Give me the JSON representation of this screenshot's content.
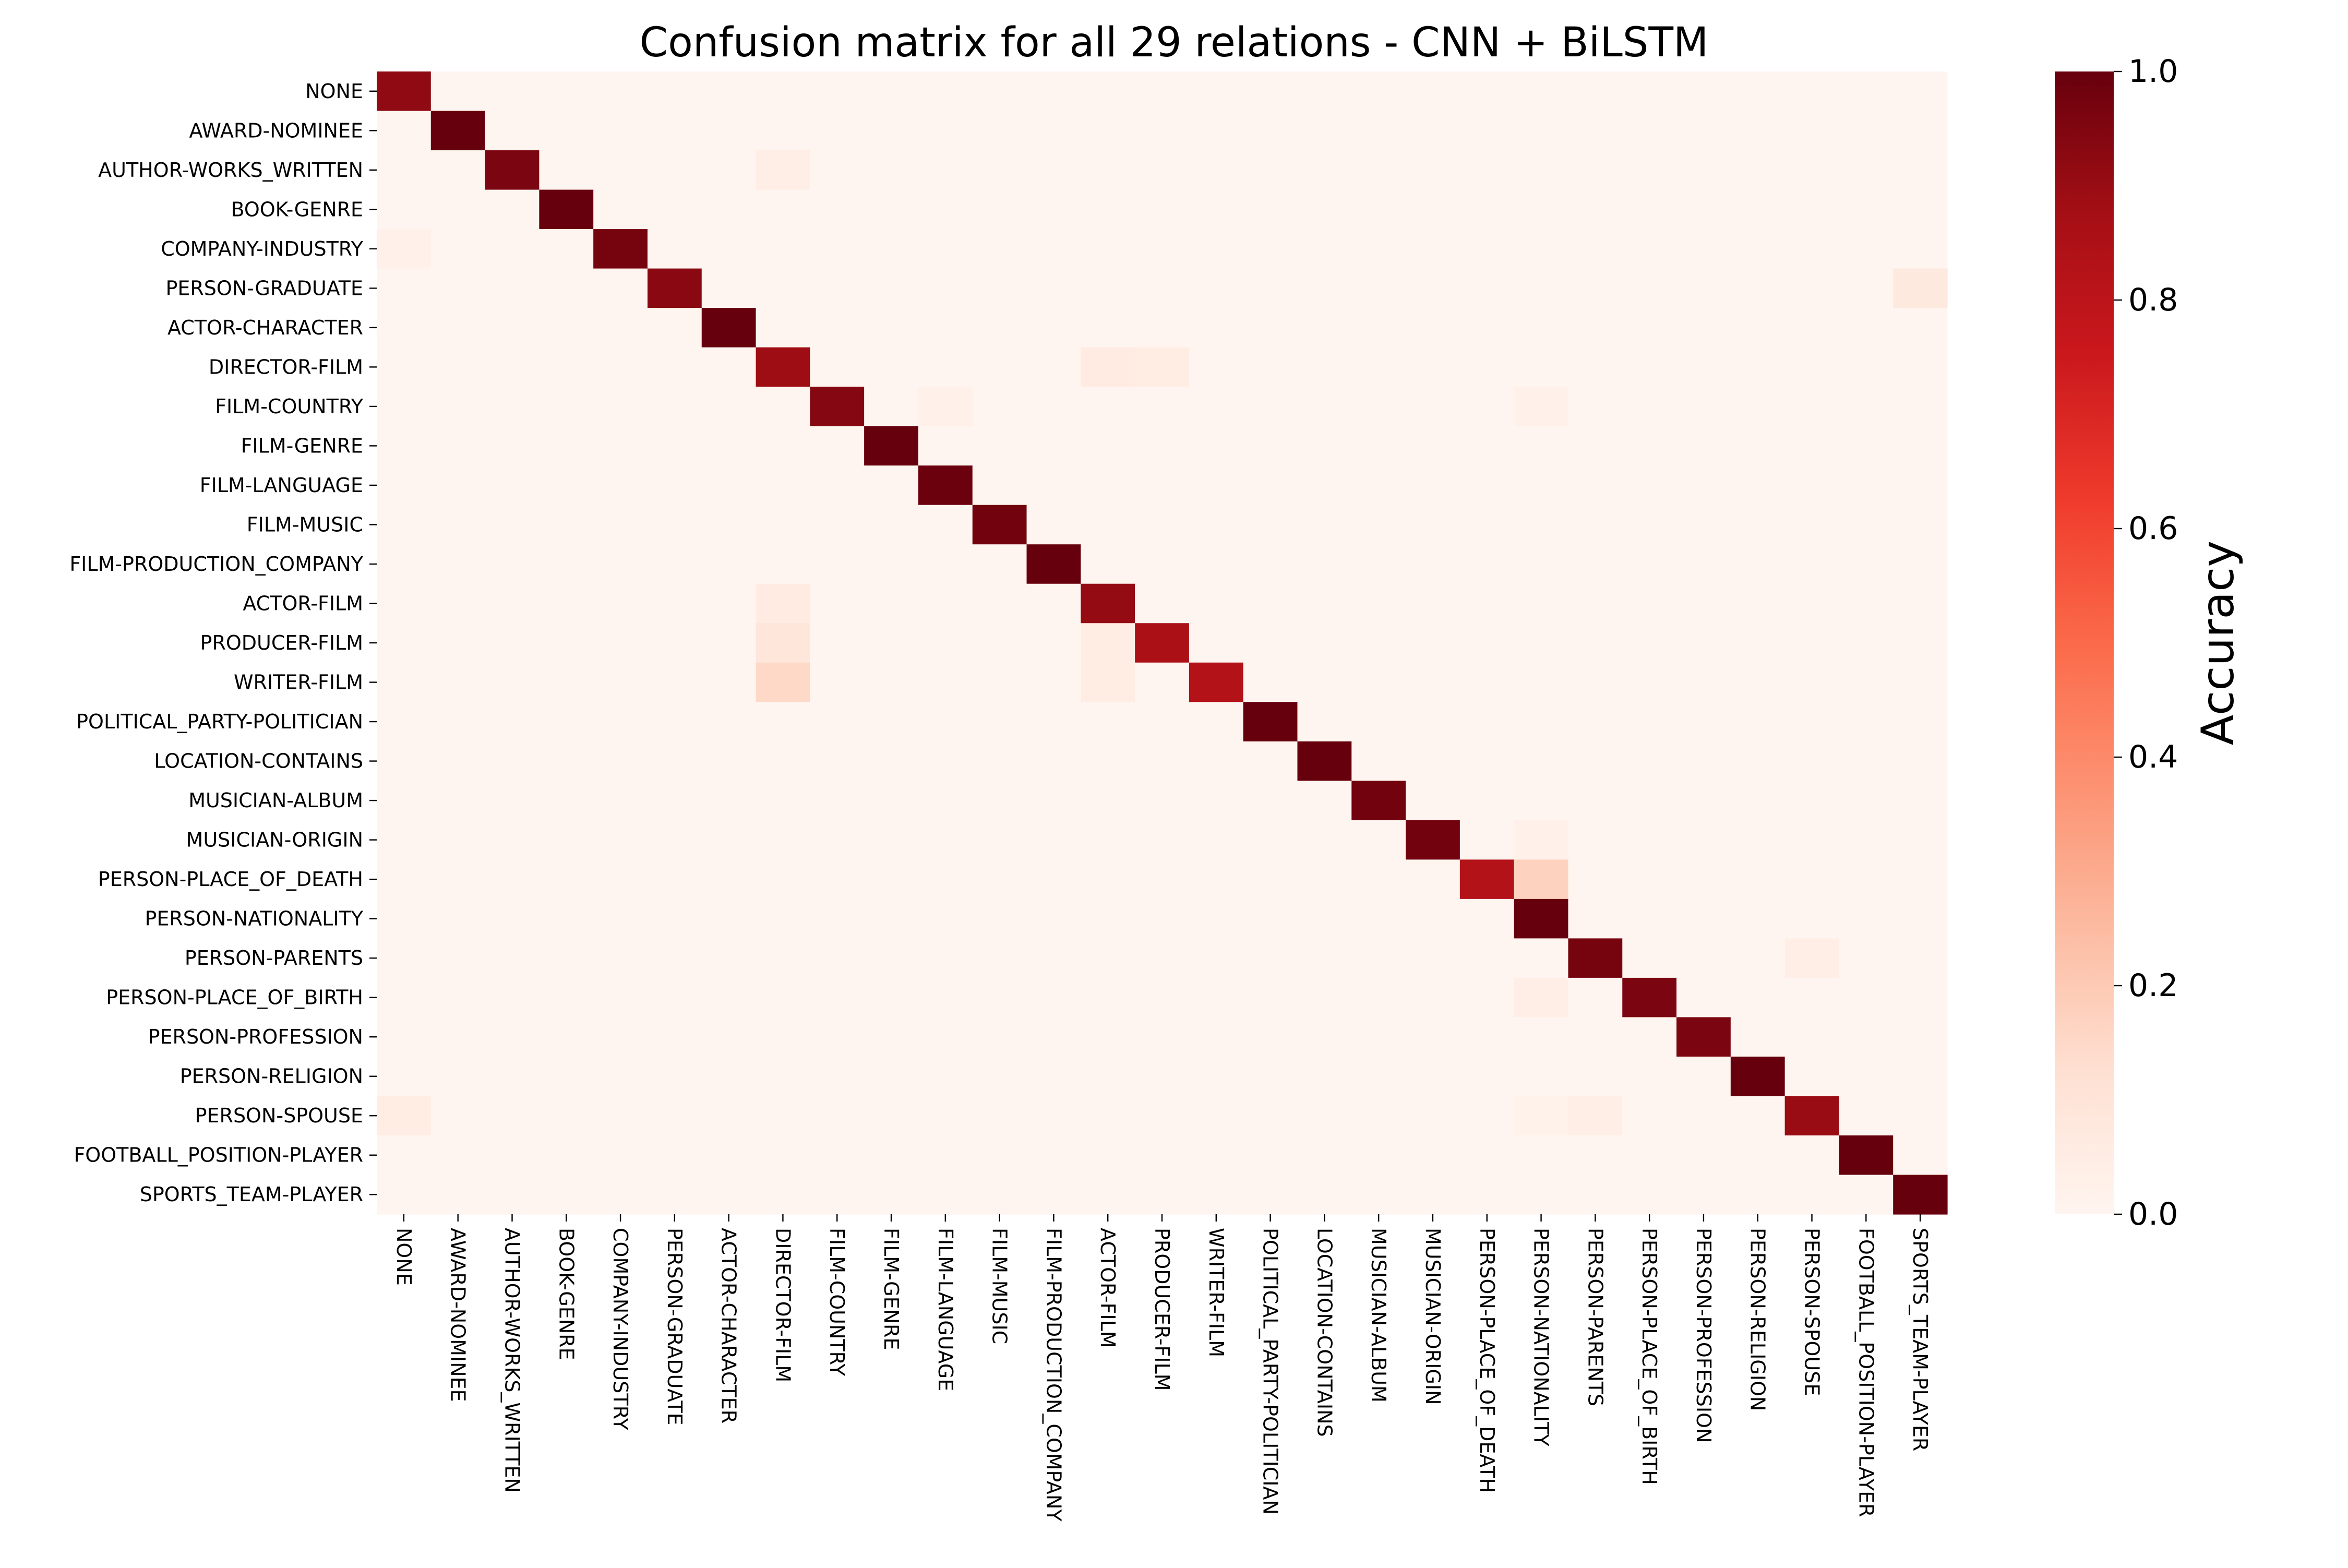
{
  "chart_data": {
    "type": "heatmap",
    "title": "Confusion matrix for all 29 relations - CNN + BiLSTM",
    "colorbar_label": "Accuracy",
    "colormap": "Reds",
    "vmin": 0.0,
    "vmax": 1.0,
    "colorbar_ticks": [
      "0.0",
      "0.2",
      "0.4",
      "0.6",
      "0.8",
      "1.0"
    ],
    "row_labels": [
      "NONE",
      "AWARD-NOMINEE",
      "AUTHOR-WORKS_WRITTEN",
      "BOOK-GENRE",
      "COMPANY-INDUSTRY",
      "PERSON-GRADUATE",
      "ACTOR-CHARACTER",
      "DIRECTOR-FILM",
      "FILM-COUNTRY",
      "FILM-GENRE",
      "FILM-LANGUAGE",
      "FILM-MUSIC",
      "FILM-PRODUCTION_COMPANY",
      "ACTOR-FILM",
      "PRODUCER-FILM",
      "WRITER-FILM",
      "POLITICAL_PARTY-POLITICIAN",
      "LOCATION-CONTAINS",
      "MUSICIAN-ALBUM",
      "MUSICIAN-ORIGIN",
      "PERSON-PLACE_OF_DEATH",
      "PERSON-NATIONALITY",
      "PERSON-PARENTS",
      "PERSON-PLACE_OF_BIRTH",
      "PERSON-PROFESSION",
      "PERSON-RELIGION",
      "PERSON-SPOUSE",
      "FOOTBALL_POSITION-PLAYER",
      "SPORTS_TEAM-PLAYER"
    ],
    "col_labels": [
      "NONE",
      "AWARD-NOMINEE",
      "AUTHOR-WORKS_WRITTEN",
      "BOOK-GENRE",
      "COMPANY-INDUSTRY",
      "PERSON-GRADUATE",
      "ACTOR-CHARACTER",
      "DIRECTOR-FILM",
      "FILM-COUNTRY",
      "FILM-GENRE",
      "FILM-LANGUAGE",
      "FILM-MUSIC",
      "FILM-PRODUCTION_COMPANY",
      "ACTOR-FILM",
      "PRODUCER-FILM",
      "WRITER-FILM",
      "POLITICAL_PARTY-POLITICIAN",
      "LOCATION-CONTAINS",
      "MUSICIAN-ALBUM",
      "MUSICIAN-ORIGIN",
      "PERSON-PLACE_OF_DEATH",
      "PERSON-NATIONALITY",
      "PERSON-PARENTS",
      "PERSON-PLACE_OF_BIRTH",
      "PERSON-PROFESSION",
      "PERSON-RELIGION",
      "PERSON-SPOUSE",
      "FOOTBALL_POSITION-PLAYER",
      "SPORTS_TEAM-PLAYER"
    ],
    "diagonal": [
      0.92,
      1.0,
      0.96,
      1.0,
      0.97,
      0.93,
      1.0,
      0.89,
      0.94,
      1.0,
      0.99,
      0.98,
      1.0,
      0.91,
      0.86,
      0.83,
      1.0,
      1.0,
      0.98,
      0.98,
      0.83,
      1.0,
      0.97,
      0.96,
      0.96,
      1.0,
      0.9,
      1.0,
      1.0
    ],
    "off_diagonal": [
      {
        "row": 2,
        "col": 7,
        "value": 0.04
      },
      {
        "row": 4,
        "col": 0,
        "value": 0.03
      },
      {
        "row": 5,
        "col": 28,
        "value": 0.07
      },
      {
        "row": 7,
        "col": 13,
        "value": 0.06
      },
      {
        "row": 7,
        "col": 14,
        "value": 0.05
      },
      {
        "row": 8,
        "col": 10,
        "value": 0.03
      },
      {
        "row": 8,
        "col": 21,
        "value": 0.03
      },
      {
        "row": 13,
        "col": 7,
        "value": 0.06
      },
      {
        "row": 14,
        "col": 7,
        "value": 0.09
      },
      {
        "row": 14,
        "col": 13,
        "value": 0.05
      },
      {
        "row": 15,
        "col": 7,
        "value": 0.15
      },
      {
        "row": 15,
        "col": 13,
        "value": 0.05
      },
      {
        "row": 19,
        "col": 21,
        "value": 0.03
      },
      {
        "row": 20,
        "col": 21,
        "value": 0.17
      },
      {
        "row": 22,
        "col": 26,
        "value": 0.04
      },
      {
        "row": 23,
        "col": 21,
        "value": 0.04
      },
      {
        "row": 26,
        "col": 0,
        "value": 0.05
      },
      {
        "row": 26,
        "col": 21,
        "value": 0.02
      },
      {
        "row": 26,
        "col": 22,
        "value": 0.04
      }
    ]
  }
}
